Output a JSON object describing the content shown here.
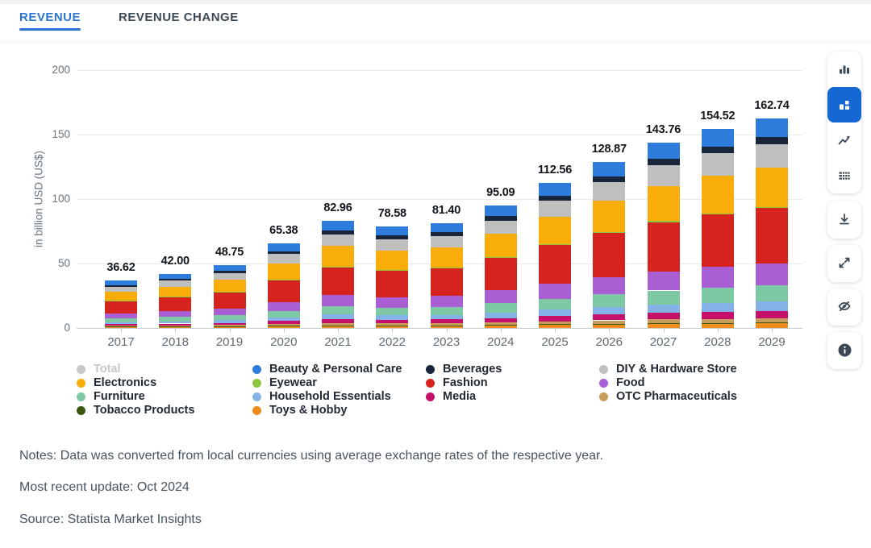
{
  "tabs": {
    "items": [
      {
        "label": "REVENUE",
        "active": true
      },
      {
        "label": "REVENUE CHANGE",
        "active": false
      }
    ]
  },
  "chart_data": {
    "type": "bar",
    "stacked": true,
    "title": "",
    "xlabel": "",
    "ylabel": "in billion USD (US$)",
    "ylim": [
      0,
      200
    ],
    "yticks": [
      0,
      50,
      100,
      150,
      200
    ],
    "grid": true,
    "legend_position": "bottom",
    "categories": [
      "2017",
      "2018",
      "2019",
      "2020",
      "2021",
      "2022",
      "2023",
      "2024",
      "2025",
      "2026",
      "2027",
      "2028",
      "2029"
    ],
    "totals": [
      36.62,
      42.0,
      48.75,
      65.38,
      82.96,
      78.58,
      81.4,
      95.09,
      112.56,
      128.87,
      143.76,
      154.52,
      162.74
    ],
    "totals_display": [
      "36.62",
      "42.00",
      "48.75",
      "65.38",
      "82.96",
      "78.58",
      "81.40",
      "95.09",
      "112.56",
      "128.87",
      "143.76",
      "154.52",
      "162.74"
    ],
    "series": [
      {
        "name": "Toys & Hobby",
        "values": [
          0.81,
          0.92,
          1.07,
          1.44,
          1.83,
          1.73,
          1.79,
          2.09,
          2.48,
          2.84,
          3.16,
          3.4,
          3.58
        ]
      },
      {
        "name": "Tobacco Products",
        "values": [
          0.15,
          0.17,
          0.2,
          0.26,
          0.33,
          0.31,
          0.33,
          0.38,
          0.45,
          0.52,
          0.58,
          0.62,
          0.65
        ]
      },
      {
        "name": "OTC Pharmaceuticals",
        "values": [
          0.73,
          0.84,
          0.98,
          1.31,
          1.66,
          1.57,
          1.63,
          1.9,
          2.25,
          2.58,
          2.88,
          3.09,
          3.25
        ]
      },
      {
        "name": "Media",
        "values": [
          1.32,
          1.51,
          1.76,
          2.35,
          2.99,
          2.83,
          2.93,
          3.42,
          4.05,
          4.64,
          5.18,
          5.56,
          5.86
        ]
      },
      {
        "name": "Household Essentials",
        "values": [
          1.61,
          1.85,
          2.15,
          2.88,
          3.65,
          3.46,
          3.58,
          4.18,
          4.95,
          5.67,
          6.33,
          6.8,
          7.16
        ]
      },
      {
        "name": "Furniture",
        "values": [
          2.78,
          3.19,
          3.71,
          4.97,
          6.3,
          5.97,
          6.19,
          7.23,
          8.55,
          9.79,
          10.93,
          11.74,
          12.37
        ]
      },
      {
        "name": "Food",
        "values": [
          3.81,
          4.37,
          5.07,
          6.8,
          8.63,
          8.17,
          8.47,
          9.89,
          11.71,
          13.4,
          14.95,
          16.07,
          16.92
        ]
      },
      {
        "name": "Fashion",
        "values": [
          9.7,
          11.13,
          12.92,
          17.33,
          21.98,
          20.82,
          21.57,
          25.2,
          29.83,
          34.15,
          38.1,
          40.95,
          43.13
        ]
      },
      {
        "name": "Eyewear",
        "values": [
          0.18,
          0.21,
          0.24,
          0.33,
          0.41,
          0.39,
          0.41,
          0.48,
          0.56,
          0.64,
          0.72,
          0.77,
          0.81
        ]
      },
      {
        "name": "Electronics",
        "values": [
          6.96,
          7.98,
          9.26,
          12.42,
          15.76,
          14.93,
          15.47,
          18.07,
          21.39,
          24.49,
          27.31,
          29.36,
          30.92
        ]
      },
      {
        "name": "DIY & Hardware Store",
        "values": [
          4.03,
          4.62,
          5.36,
          7.19,
          9.13,
          8.64,
          8.95,
          10.46,
          12.38,
          14.18,
          15.81,
          17.0,
          17.9
        ]
      },
      {
        "name": "Beverages",
        "values": [
          1.32,
          1.51,
          1.76,
          2.35,
          2.99,
          2.83,
          2.93,
          3.42,
          4.05,
          4.64,
          5.18,
          5.56,
          5.86
        ]
      },
      {
        "name": "Beauty & Personal Care",
        "values": [
          3.22,
          3.7,
          4.27,
          5.75,
          7.3,
          6.93,
          7.15,
          8.37,
          9.91,
          11.33,
          12.63,
          13.6,
          14.33
        ]
      }
    ],
    "palette": {
      "Total": "#C9C9C9",
      "Beauty & Personal Care": "#2E7CDB",
      "Beverages": "#18263C",
      "DIY & Hardware Store": "#BFBFBF",
      "Electronics": "#F8AD0A",
      "Eyewear": "#8CC63F",
      "Fashion": "#D7231E",
      "Food": "#A95FD3",
      "Furniture": "#7CC9A3",
      "Household Essentials": "#85B2E6",
      "Media": "#C6116B",
      "OTC Pharmaceuticals": "#C79C5C",
      "Tobacco Products": "#39570F",
      "Toys & Hobby": "#EF8C1C"
    },
    "legend_columns": [
      [
        "Total",
        "Electronics",
        "Furniture",
        "Tobacco Products"
      ],
      [
        "Beauty & Personal Care",
        "Eyewear",
        "Household Essentials",
        "Toys & Hobby"
      ],
      [
        "Beverages",
        "Fashion",
        "Media"
      ],
      [
        "DIY & Hardware Store",
        "Food",
        "OTC Pharmaceuticals"
      ]
    ],
    "legend_disabled": [
      "Total"
    ]
  },
  "notes": {
    "line1": "Notes: Data was converted from local currencies using average exchange rates of the respective year.",
    "line2": "Most recent update: Oct 2024",
    "line3": "Source: Statista Market Insights"
  },
  "sidebar": {
    "tools": [
      {
        "icon": "column-chart-icon",
        "active": false
      },
      {
        "icon": "stacked-chart-icon",
        "active": true
      },
      {
        "icon": "line-chart-icon",
        "active": false
      },
      {
        "icon": "table-icon",
        "active": false
      },
      {
        "icon": "download-icon",
        "active": false
      },
      {
        "icon": "fullscreen-icon",
        "active": false
      },
      {
        "icon": "hide-icon",
        "active": false
      },
      {
        "icon": "info-icon",
        "active": false
      }
    ]
  },
  "colors": {
    "accent_blue": "#2A76D2",
    "active_tool_blue": "#1568D3",
    "tab_inactive": "#3C4956",
    "axis_text": "#6A757F",
    "notes_text": "#475460"
  }
}
